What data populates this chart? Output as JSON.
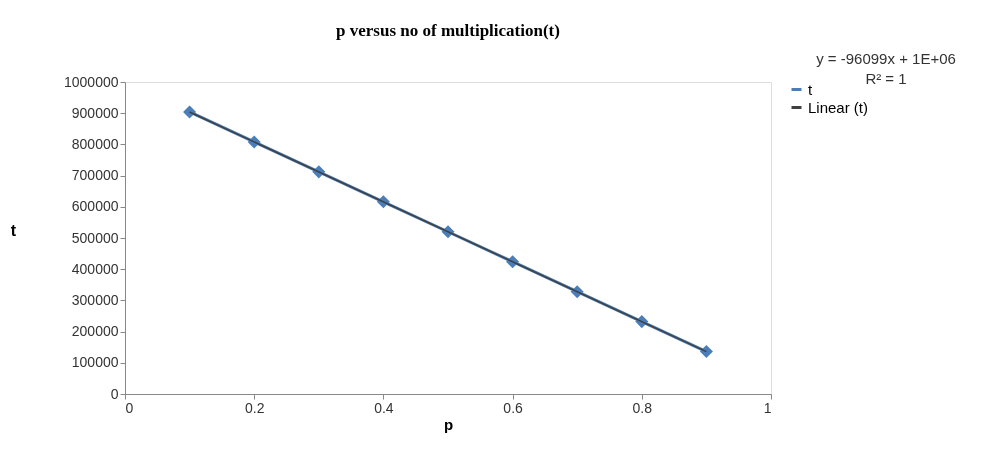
{
  "chart_data": {
    "type": "line",
    "title": "p versus no of multiplication(t)",
    "xlabel": "p",
    "ylabel": "t",
    "x": [
      0.1,
      0.2,
      0.3,
      0.4,
      0.5,
      0.6,
      0.7,
      0.8,
      0.9
    ],
    "series": [
      {
        "name": "t",
        "color": "#4a7ebb",
        "marker": "diamond",
        "values": [
          904000,
          808000,
          712000,
          616000,
          520000,
          424000,
          328000,
          232000,
          136000
        ]
      },
      {
        "name": "Linear (t)",
        "type": "line",
        "color": "#404040",
        "marker": "none",
        "x": [
          0.1,
          0.9
        ],
        "values": [
          904000,
          136000
        ]
      }
    ],
    "xlim": [
      0,
      1
    ],
    "xticks": [
      0,
      0.2,
      0.4,
      0.6,
      0.8,
      1
    ],
    "ylim": [
      0,
      1000000
    ],
    "yticks": [
      0,
      100000,
      200000,
      300000,
      400000,
      500000,
      600000,
      700000,
      800000,
      900000,
      1000000
    ],
    "grid": false,
    "legend": "right",
    "annotations": [
      "y = -96099x + 1E+06",
      "R² = 1"
    ]
  }
}
